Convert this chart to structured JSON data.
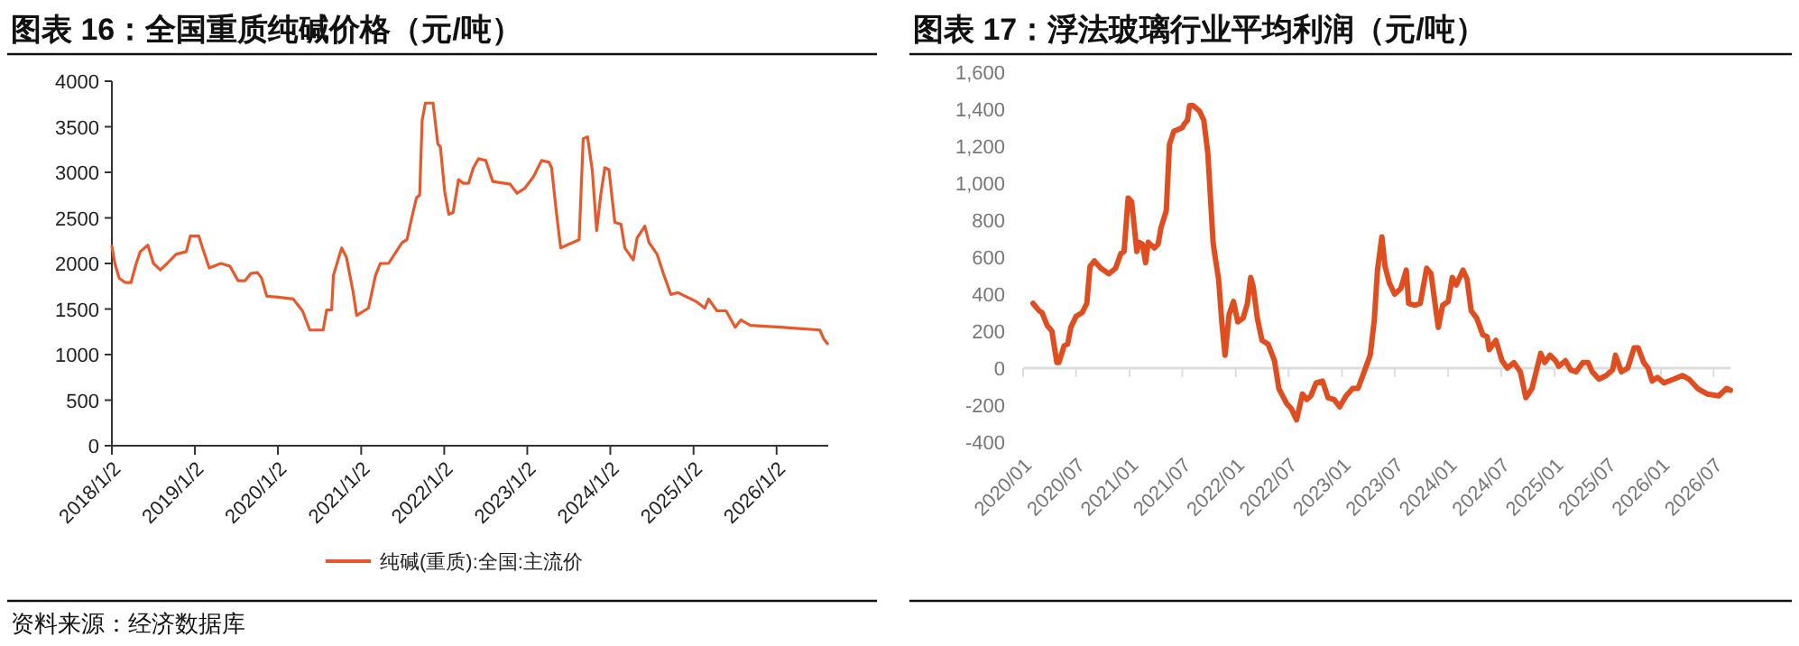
{
  "chart_data": [
    {
      "type": "line",
      "title": "图表 16：全国重质纯碱价格（元/吨）",
      "xlim": [
        "2018-01-02",
        "2026-08-17"
      ],
      "xticks": [
        {
          "value": "2018-01-02",
          "label": "2018/1/2"
        },
        {
          "value": "2019-01-02",
          "label": "2019/1/2"
        },
        {
          "value": "2020-01-02",
          "label": "2020/1/2"
        },
        {
          "value": "2021-01-02",
          "label": "2021/1/2"
        },
        {
          "value": "2022-01-02",
          "label": "2022/1/2"
        },
        {
          "value": "2023-01-02",
          "label": "2023/1/2"
        },
        {
          "value": "2024-01-02",
          "label": "2024/1/2"
        },
        {
          "value": "2025-01-02",
          "label": "2025/1/2"
        },
        {
          "value": "2026-01-02",
          "label": "2026/1/2"
        }
      ],
      "ylim": [
        0,
        4000
      ],
      "yticks": [
        0,
        500,
        1000,
        1500,
        2000,
        2500,
        3000,
        3500,
        4000
      ],
      "legend": "bottom",
      "annotations": [
        "资料来源：经济数据库"
      ],
      "series": [
        {
          "name": "纯碱(重质):全国:主流价",
          "color": "#e8582a",
          "x": [
            "2018-01-02",
            "2018-01-15",
            "2018-02-03",
            "2018-03-02",
            "2018-03-27",
            "2018-04-19",
            "2018-05-07",
            "2018-06-09",
            "2018-07-04",
            "2018-08-03",
            "2018-09-02",
            "2018-10-11",
            "2018-11-25",
            "2018-12-13",
            "2019-01-19",
            "2019-02-10",
            "2019-03-06",
            "2019-04-26",
            "2019-06-05",
            "2019-07-11",
            "2019-08-10",
            "2019-09-05",
            "2019-10-04",
            "2019-10-22",
            "2019-11-14",
            "2020-01-04",
            "2020-03-09",
            "2020-04-19",
            "2020-05-21",
            "2020-07-19",
            "2020-08-03",
            "2020-08-25",
            "2020-09-02",
            "2020-10-08",
            "2020-10-29",
            "2020-11-28",
            "2020-12-13",
            "2021-02-03",
            "2021-03-06",
            "2021-03-27",
            "2021-05-02",
            "2021-07-01",
            "2021-07-22",
            "2021-08-14",
            "2021-09-02",
            "2021-09-16",
            "2021-09-27",
            "2021-10-11",
            "2021-11-14",
            "2021-12-05",
            "2021-12-16",
            "2022-01-04",
            "2022-01-22",
            "2022-02-10",
            "2022-03-06",
            "2022-03-27",
            "2022-04-19",
            "2022-05-10",
            "2022-06-02",
            "2022-07-04",
            "2022-08-03",
            "2022-10-19",
            "2022-11-18",
            "2022-12-20",
            "2023-01-29",
            "2023-03-06",
            "2023-04-08",
            "2023-04-19",
            "2023-05-10",
            "2023-05-29",
            "2023-06-24",
            "2023-08-18",
            "2023-09-05",
            "2023-09-24",
            "2023-10-15",
            "2023-11-03",
            "2023-11-21",
            "2023-12-09",
            "2023-12-27",
            "2024-01-22",
            "2024-02-18",
            "2024-03-06",
            "2024-04-12",
            "2024-04-29",
            "2024-06-02",
            "2024-06-20",
            "2024-07-26",
            "2024-08-21",
            "2024-09-24",
            "2024-10-26",
            "2025-01-15",
            "2025-02-21",
            "2025-03-09",
            "2025-04-15",
            "2025-05-25",
            "2025-07-04",
            "2025-07-29",
            "2025-09-09",
            "2026-01-19",
            "2026-03-13",
            "2026-07-11",
            "2026-07-29",
            "2026-08-14"
          ],
          "values": [
            2190,
            2000,
            1840,
            1790,
            1790,
            2000,
            2130,
            2200,
            2000,
            1930,
            2000,
            2100,
            2130,
            2300,
            2300,
            2130,
            1950,
            2000,
            1970,
            1810,
            1810,
            1890,
            1900,
            1840,
            1640,
            1630,
            1610,
            1480,
            1270,
            1270,
            1490,
            1490,
            1870,
            2170,
            2070,
            1680,
            1430,
            1510,
            1870,
            2000,
            2000,
            2230,
            2260,
            2520,
            2720,
            2750,
            3570,
            3760,
            3760,
            3310,
            3280,
            2790,
            2540,
            2560,
            2920,
            2880,
            2880,
            3050,
            3150,
            3130,
            2900,
            2870,
            2770,
            2820,
            2950,
            3130,
            3110,
            3050,
            2560,
            2170,
            2200,
            2260,
            3370,
            3390,
            3020,
            2360,
            2750,
            3050,
            3030,
            2450,
            2430,
            2170,
            2040,
            2280,
            2410,
            2230,
            2100,
            1900,
            1660,
            1680,
            1580,
            1510,
            1610,
            1480,
            1480,
            1300,
            1380,
            1320,
            1300,
            1290,
            1270,
            1170,
            1120
          ]
        }
      ]
    },
    {
      "type": "line",
      "title": "图表 17：浮法玻璃行业平均利润（元/吨）",
      "xlim": [
        "2020-01-01",
        "2026-08-28"
      ],
      "xticks": [
        {
          "value": "2020-01-01",
          "label": "2020/01"
        },
        {
          "value": "2020-07-01",
          "label": "2020/07"
        },
        {
          "value": "2021-01-01",
          "label": "2021/01"
        },
        {
          "value": "2021-07-01",
          "label": "2021/07"
        },
        {
          "value": "2022-01-01",
          "label": "2022/01"
        },
        {
          "value": "2022-07-01",
          "label": "2022/07"
        },
        {
          "value": "2023-01-01",
          "label": "2023/01"
        },
        {
          "value": "2023-07-01",
          "label": "2023/07"
        },
        {
          "value": "2024-01-01",
          "label": "2024/01"
        },
        {
          "value": "2024-07-01",
          "label": "2024/07"
        },
        {
          "value": "2025-01-01",
          "label": "2025/01"
        },
        {
          "value": "2025-07-01",
          "label": "2025/07"
        },
        {
          "value": "2026-01-01",
          "label": "2026/01"
        },
        {
          "value": "2026-07-01",
          "label": "2026/07"
        }
      ],
      "ylim": [
        -400,
        1600
      ],
      "yticks": [
        -400,
        -200,
        0,
        200,
        400,
        600,
        800,
        {
          "value": 1000,
          "label": "1,000"
        },
        {
          "value": 1200,
          "label": "1,200"
        },
        {
          "value": 1400,
          "label": "1,400"
        },
        {
          "value": 1600,
          "label": "1,600"
        }
      ],
      "series": [
        {
          "color": "#e04e1f",
          "x": [
            "2020-02-04",
            "2020-02-25",
            "2020-03-06",
            "2020-03-24",
            "2020-04-09",
            "2020-04-26",
            "2020-05-03",
            "2020-05-21",
            "2020-06-02",
            "2020-06-13",
            "2020-07-01",
            "2020-07-22",
            "2020-08-07",
            "2020-08-18",
            "2020-09-02",
            "2020-09-24",
            "2020-10-22",
            "2020-11-14",
            "2020-12-02",
            "2020-12-13",
            "2020-12-27",
            "2021-01-08",
            "2021-01-26",
            "2021-02-03",
            "2021-02-14",
            "2021-02-25",
            "2021-03-06",
            "2021-03-27",
            "2021-04-09",
            "2021-04-19",
            "2021-05-07",
            "2021-05-18",
            "2021-06-02",
            "2021-06-17",
            "2021-07-01",
            "2021-07-08",
            "2021-07-19",
            "2021-07-26",
            "2021-08-07",
            "2021-08-29",
            "2021-09-13",
            "2021-09-27",
            "2021-10-15",
            "2021-10-22",
            "2021-11-03",
            "2021-11-14",
            "2021-11-25",
            "2021-12-09",
            "2021-12-24",
            "2022-01-08",
            "2022-01-26",
            "2022-02-10",
            "2022-02-21",
            "2022-03-02",
            "2022-03-16",
            "2022-04-01",
            "2022-04-22",
            "2022-05-14",
            "2022-05-29",
            "2022-06-24",
            "2022-07-11",
            "2022-07-29",
            "2022-08-18",
            "2022-09-02",
            "2022-09-16",
            "2022-10-04",
            "2022-10-26",
            "2022-11-14",
            "2022-12-05",
            "2022-12-24",
            "2023-01-15",
            "2023-02-07",
            "2023-02-25",
            "2023-03-16",
            "2023-04-08",
            "2023-04-22",
            "2023-05-03",
            "2023-05-18",
            "2023-05-29",
            "2023-06-13",
            "2023-07-01",
            "2023-07-22",
            "2023-08-10",
            "2023-08-18",
            "2023-09-09",
            "2023-09-27",
            "2023-10-19",
            "2023-11-03",
            "2023-11-21",
            "2023-11-28",
            "2023-12-13",
            "2024-01-01",
            "2024-01-15",
            "2024-01-29",
            "2024-02-21",
            "2024-03-06",
            "2024-03-20",
            "2024-04-08",
            "2024-04-29",
            "2024-05-14",
            "2024-05-21",
            "2024-06-13",
            "2024-07-04",
            "2024-07-22",
            "2024-08-14",
            "2024-09-05",
            "2024-09-24",
            "2024-10-15",
            "2024-11-14",
            "2024-11-28",
            "2024-12-16",
            "2025-01-04",
            "2025-01-15",
            "2025-02-07",
            "2025-02-25",
            "2025-03-16",
            "2025-04-08",
            "2025-04-26",
            "2025-05-10",
            "2025-06-02",
            "2025-06-27",
            "2025-07-19",
            "2025-07-29",
            "2025-08-18",
            "2025-09-09",
            "2025-10-01",
            "2025-10-15",
            "2025-11-03",
            "2025-11-18",
            "2025-12-02",
            "2025-12-20",
            "2026-01-12",
            "2026-02-14",
            "2026-03-16",
            "2026-04-08",
            "2026-05-07",
            "2026-06-09",
            "2026-07-19",
            "2026-08-14",
            "2026-08-28"
          ],
          "values": [
            350,
            310,
            300,
            230,
            200,
            30,
            30,
            120,
            130,
            220,
            280,
            300,
            350,
            550,
            580,
            540,
            510,
            540,
            620,
            630,
            920,
            900,
            630,
            680,
            670,
            570,
            680,
            650,
            670,
            760,
            850,
            1210,
            1280,
            1290,
            1300,
            1320,
            1340,
            1420,
            1420,
            1390,
            1340,
            1160,
            680,
            600,
            480,
            250,
            70,
            290,
            360,
            250,
            270,
            350,
            490,
            440,
            270,
            150,
            130,
            40,
            -110,
            -190,
            -220,
            -280,
            -140,
            -170,
            -150,
            -80,
            -70,
            -160,
            -170,
            -210,
            -150,
            -110,
            -110,
            -30,
            70,
            260,
            530,
            710,
            550,
            460,
            400,
            430,
            530,
            350,
            340,
            350,
            540,
            510,
            300,
            220,
            340,
            360,
            490,
            450,
            530,
            480,
            310,
            270,
            180,
            170,
            100,
            150,
            40,
            0,
            30,
            -20,
            -160,
            -110,
            80,
            30,
            70,
            40,
            10,
            40,
            -10,
            -20,
            30,
            30,
            -20,
            -60,
            -40,
            -10,
            70,
            -20,
            0,
            110,
            110,
            30,
            0,
            -70,
            -50,
            -80,
            -60,
            -40,
            -60,
            -110,
            -140,
            -150,
            -110,
            -120
          ]
        }
      ]
    }
  ]
}
